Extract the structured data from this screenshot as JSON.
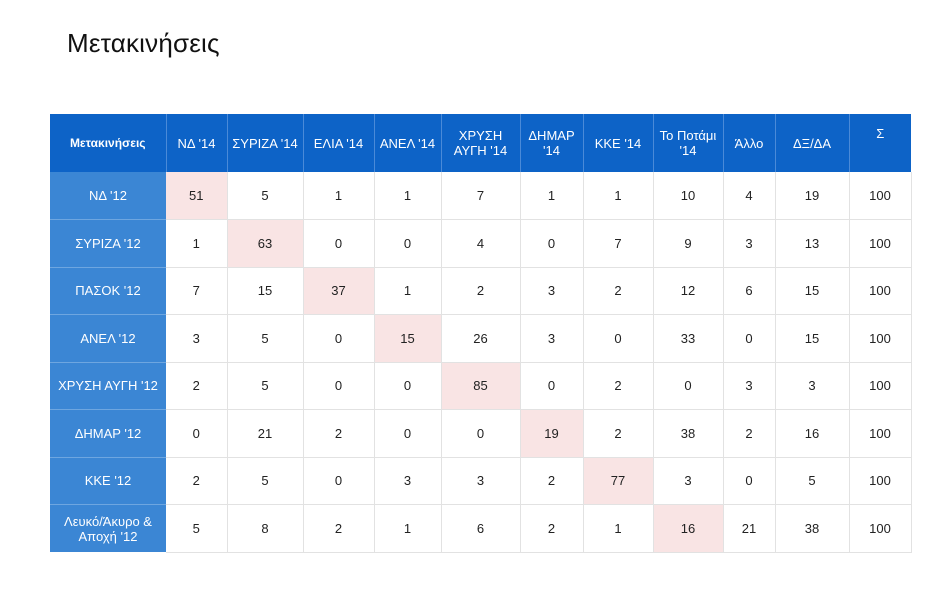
{
  "title": "Μετακινήσεις",
  "colors": {
    "header_bg": "#0d63c7",
    "row_header_bg": "#3b86d4",
    "diagonal_bg": "#f9e4e4"
  },
  "table": {
    "corner": "Μετακινήσεις",
    "columns": [
      "ΝΔ '14",
      "ΣΥΡΙΖΑ '14",
      "ΕΛΙΑ '14",
      "ΑΝΕΛ '14",
      "ΧΡΥΣΗ ΑΥΓΗ '14",
      "ΔΗΜΑΡ '14",
      "ΚΚΕ '14",
      "Το Ποτάμι '14",
      "Άλλο",
      "ΔΞ/ΔΑ",
      "Σ"
    ],
    "rows": [
      {
        "label": "ΝΔ '12",
        "values": [
          "51",
          "5",
          "1",
          "1",
          "7",
          "1",
          "1",
          "10",
          "4",
          "19",
          "100"
        ]
      },
      {
        "label": "ΣΥΡΙΖΑ '12",
        "values": [
          "1",
          "63",
          "0",
          "0",
          "4",
          "0",
          "7",
          "9",
          "3",
          "13",
          "100"
        ]
      },
      {
        "label": "ΠΑΣΟΚ '12",
        "values": [
          "7",
          "15",
          "37",
          "1",
          "2",
          "3",
          "2",
          "12",
          "6",
          "15",
          "100"
        ]
      },
      {
        "label": "ΑΝΕΛ '12",
        "values": [
          "3",
          "5",
          "0",
          "15",
          "26",
          "3",
          "0",
          "33",
          "0",
          "15",
          "100"
        ]
      },
      {
        "label": "ΧΡΥΣΗ ΑΥΓΗ '12",
        "values": [
          "2",
          "5",
          "0",
          "0",
          "85",
          "0",
          "2",
          "0",
          "3",
          "3",
          "100"
        ]
      },
      {
        "label": "ΔΗΜΑΡ '12",
        "values": [
          "0",
          "21",
          "2",
          "0",
          "0",
          "19",
          "2",
          "38",
          "2",
          "16",
          "100"
        ]
      },
      {
        "label": "ΚΚΕ '12",
        "values": [
          "2",
          "5",
          "0",
          "3",
          "3",
          "2",
          "77",
          "3",
          "0",
          "5",
          "100"
        ]
      },
      {
        "label": "Λευκό/Άκυρο & Αποχή '12",
        "values": [
          "5",
          "8",
          "2",
          "1",
          "6",
          "2",
          "1",
          "16",
          "21",
          "38",
          "100"
        ]
      }
    ]
  }
}
